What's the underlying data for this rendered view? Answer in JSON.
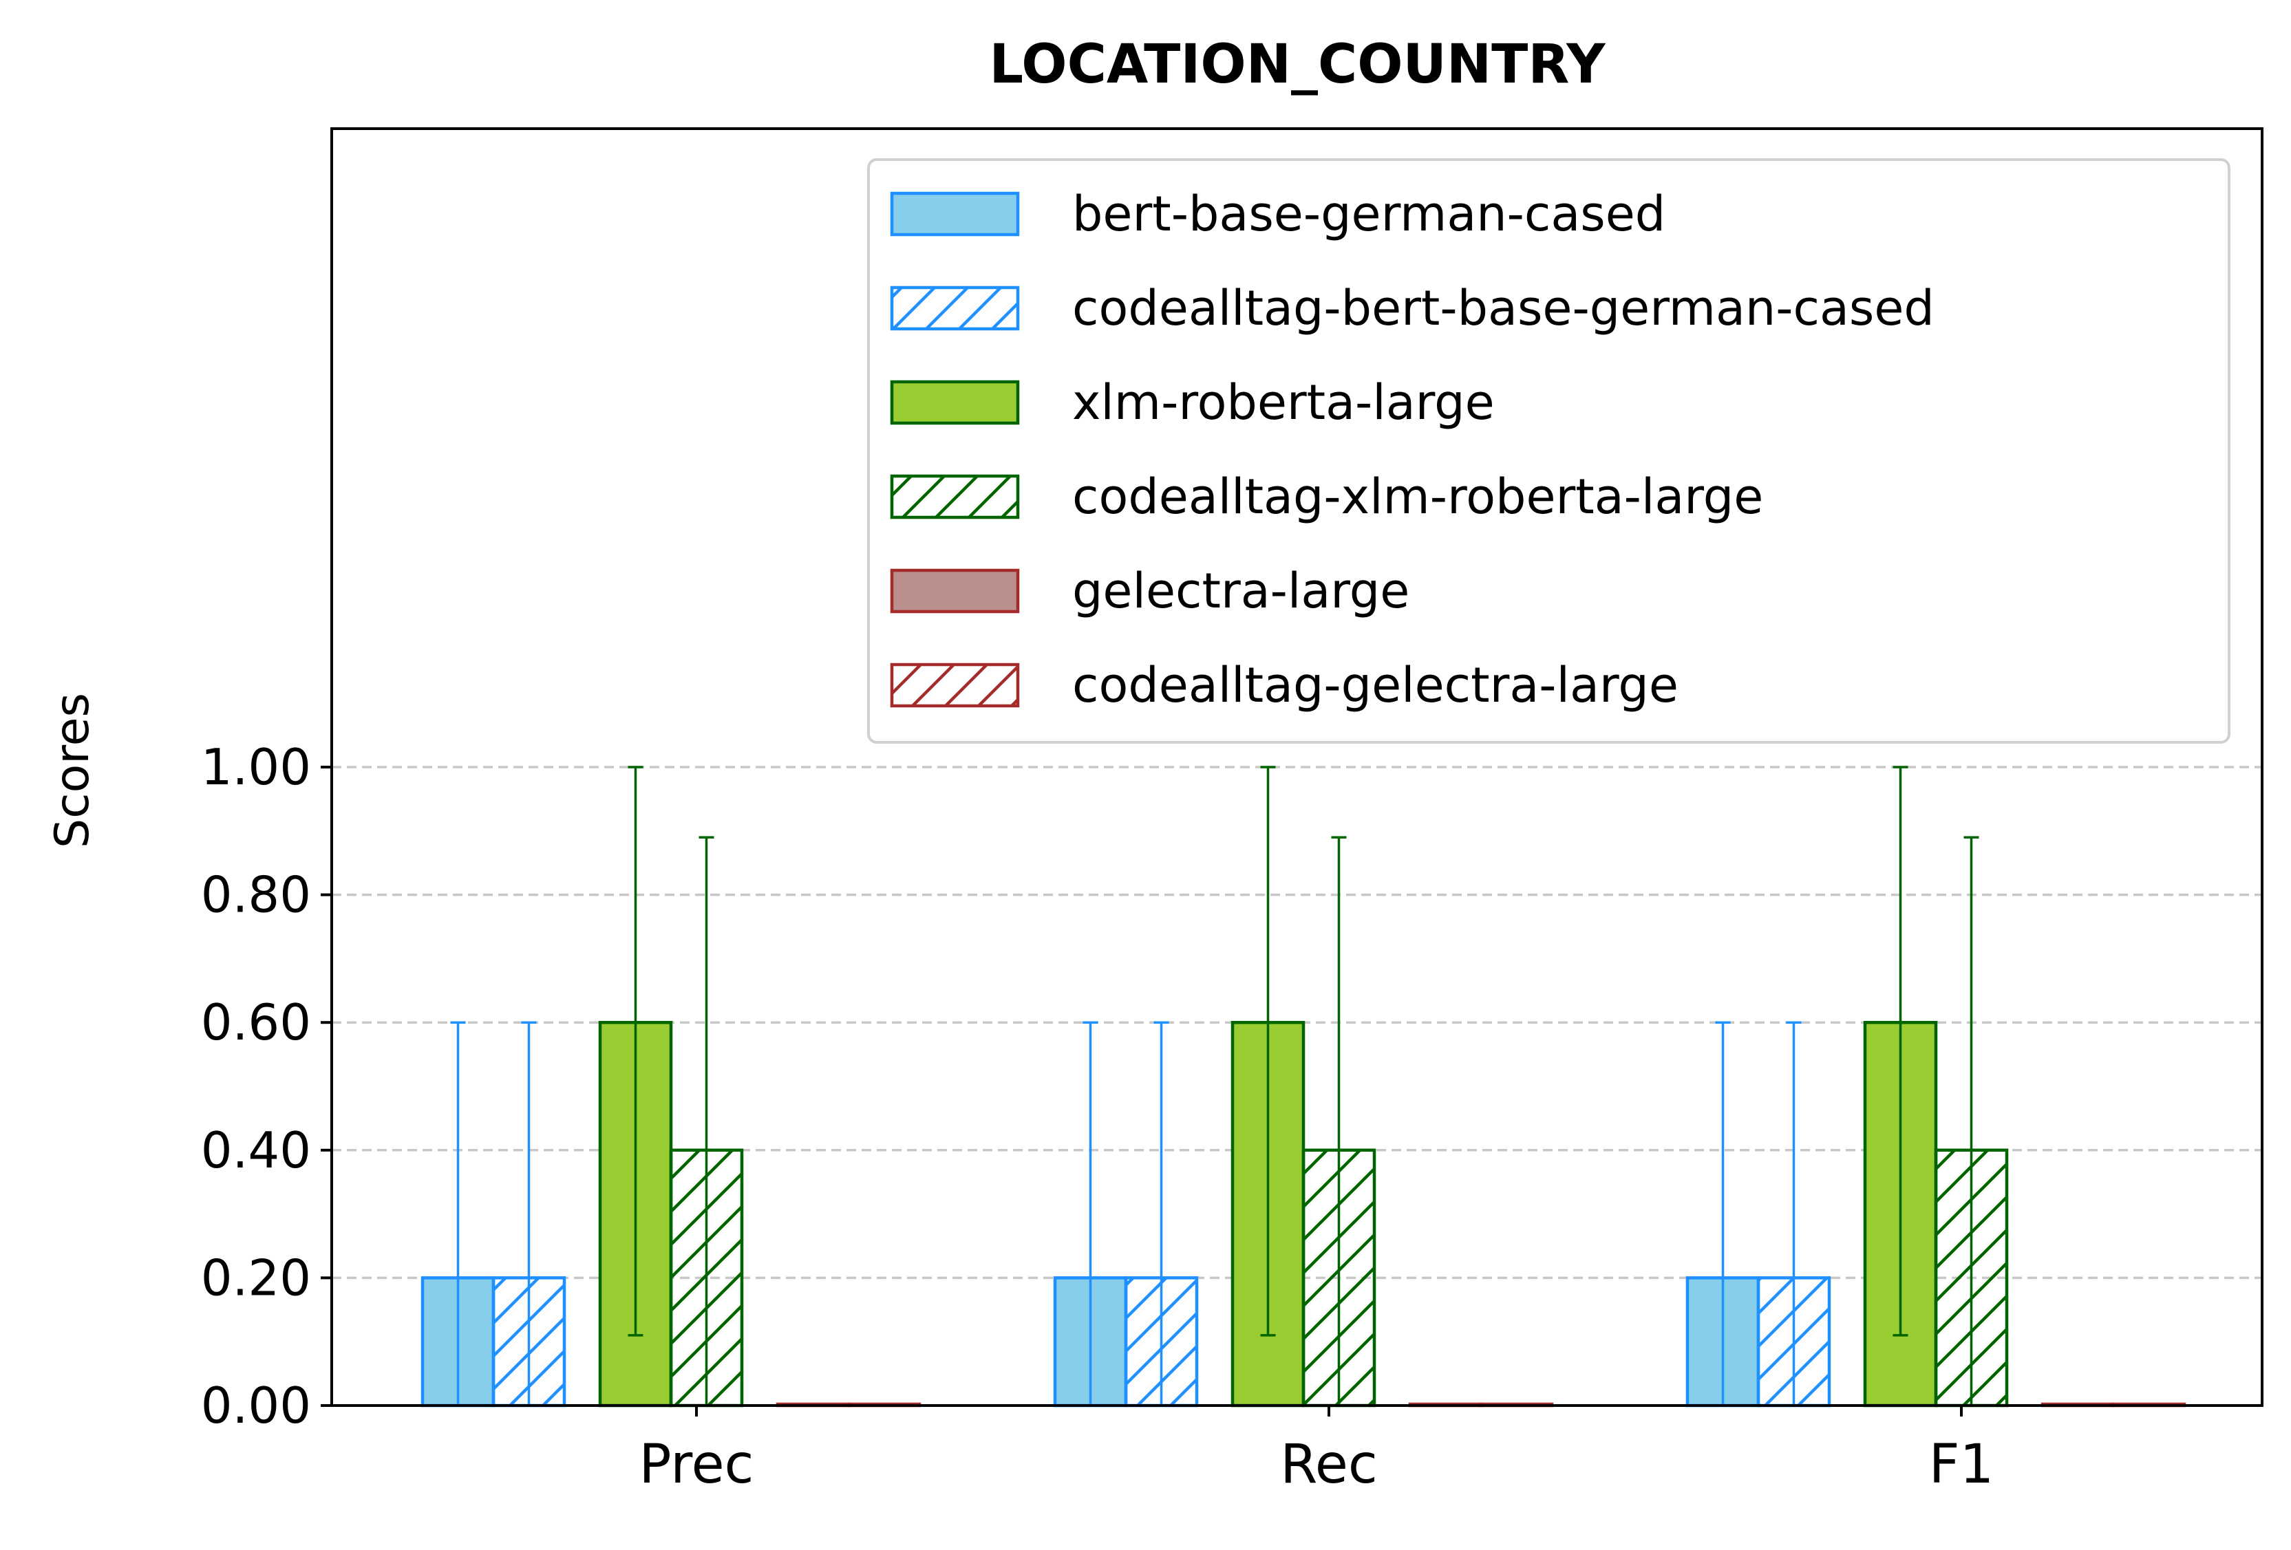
{
  "chart_data": {
    "type": "bar",
    "title": "LOCATION_COUNTRY",
    "xlabel": "",
    "ylabel": "Scores",
    "categories": [
      "Prec",
      "Rec",
      "F1"
    ],
    "ylim": [
      0,
      2.0
    ],
    "yticks": [
      "0.00",
      "0.20",
      "0.40",
      "0.60",
      "0.80",
      "1.00"
    ],
    "grid": "horizontal dashed",
    "legend_position": "top-right",
    "series": [
      {
        "name": "bert-base-german-cased",
        "values": [
          0.2,
          0.2,
          0.2
        ],
        "err_low": [
          0.0,
          0.0,
          0.0
        ],
        "err_high": [
          0.6,
          0.6,
          0.6
        ],
        "fill": "#87CEEB",
        "edge": "#1E90FF",
        "hatched": false
      },
      {
        "name": "codealltag-bert-base-german-cased",
        "values": [
          0.2,
          0.2,
          0.2
        ],
        "err_low": [
          0.0,
          0.0,
          0.0
        ],
        "err_high": [
          0.6,
          0.6,
          0.6
        ],
        "fill": "none",
        "edge": "#1E90FF",
        "hatched": true
      },
      {
        "name": "xlm-roberta-large",
        "values": [
          0.6,
          0.6,
          0.6
        ],
        "err_low": [
          0.11,
          0.11,
          0.11
        ],
        "err_high": [
          1.0,
          1.0,
          1.0
        ],
        "fill": "#9ACD32",
        "edge": "#006400",
        "hatched": false
      },
      {
        "name": "codealltag-xlm-roberta-large",
        "values": [
          0.4,
          0.4,
          0.4
        ],
        "err_low": [
          0.0,
          0.0,
          0.0
        ],
        "err_high": [
          0.89,
          0.89,
          0.89
        ],
        "fill": "none",
        "edge": "#006400",
        "hatched": true
      },
      {
        "name": "gelectra-large",
        "values": [
          0.0,
          0.0,
          0.0
        ],
        "err_low": [
          0.0,
          0.0,
          0.0
        ],
        "err_high": [
          0.0,
          0.0,
          0.0
        ],
        "fill": "#BC8F8F",
        "edge": "#A52A2A",
        "hatched": false
      },
      {
        "name": "codealltag-gelectra-large",
        "values": [
          0.0,
          0.0,
          0.0
        ],
        "err_low": [
          0.0,
          0.0,
          0.0
        ],
        "err_high": [
          0.0,
          0.0,
          0.0
        ],
        "fill": "none",
        "edge": "#A52A2A",
        "hatched": true
      }
    ]
  }
}
